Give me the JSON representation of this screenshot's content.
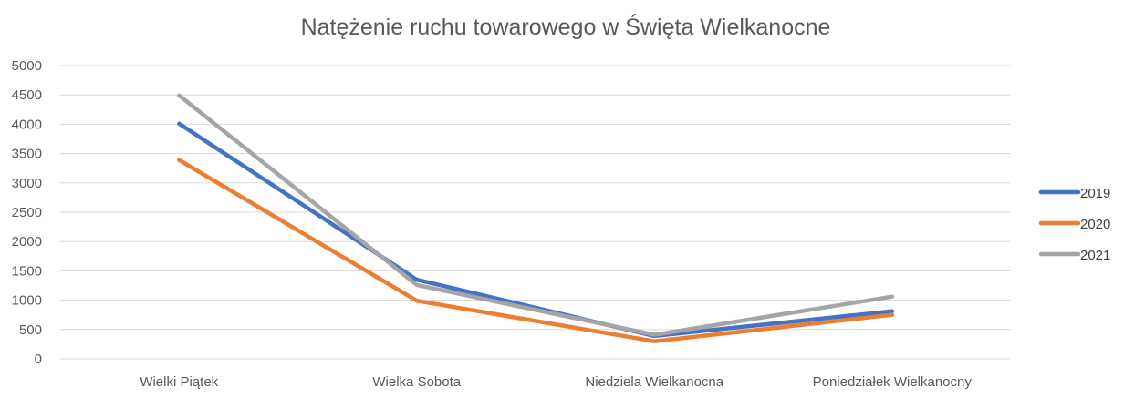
{
  "chart_data": {
    "type": "line",
    "title": "Natężenie ruchu towarowego w Święta Wielkanocne",
    "xlabel": "",
    "ylabel": "",
    "categories": [
      "Wielki Piątek",
      "Wielka Sobota",
      "Niedziela Wielkanocna",
      "Poniedziałek Wielkanocny"
    ],
    "ylim": [
      0,
      5000
    ],
    "yticks": [
      "0",
      "500",
      "1000",
      "1500",
      "2000",
      "2500",
      "3000",
      "3500",
      "4000",
      "4500",
      "5000"
    ],
    "grid": true,
    "legend_position": "right",
    "series": [
      {
        "name": "2019",
        "color": "#4472C4",
        "values": [
          4010,
          1350,
          390,
          810
        ]
      },
      {
        "name": "2020",
        "color": "#ED7D31",
        "values": [
          3390,
          990,
          300,
          750
        ]
      },
      {
        "name": "2021",
        "color": "#A5A5A5",
        "values": [
          4490,
          1260,
          410,
          1060
        ]
      }
    ]
  }
}
